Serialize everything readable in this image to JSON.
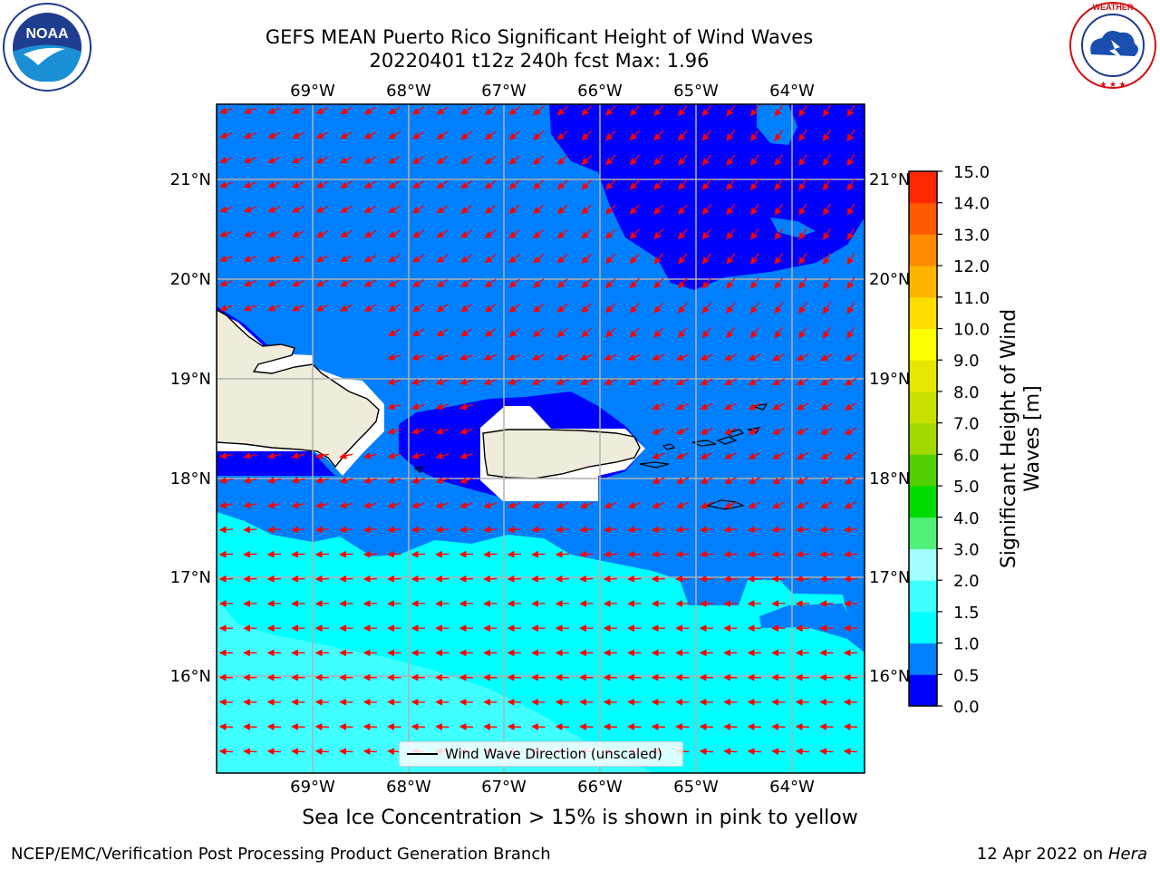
{
  "header": {
    "title_line1": "GEFS MEAN Puerto Rico Significant Height of Wind Waves",
    "title_line2": "20220401 t12z 240h fcst   Max: 1.96"
  },
  "logos": {
    "left": "noaa-logo",
    "right": "nws-logo",
    "nws_text": "NATIONAL WEATHER SERVICE"
  },
  "map": {
    "lon_labels": [
      "69°W",
      "68°W",
      "67°W",
      "66°W",
      "65°W",
      "64°W"
    ],
    "lat_labels": [
      "21°N",
      "20°N",
      "19°N",
      "18°N",
      "17°N",
      "16°N"
    ],
    "legend_label": "Wind Wave Direction (unscaled)",
    "arrow_color": "#ff0000",
    "land_color": "#efecdc"
  },
  "colorbar": {
    "title": "Significant Height of Wind Waves [m]",
    "title_line1": "Significant Height of Wind",
    "title_line2": "Waves [m]",
    "ticks": [
      "0.0",
      "0.5",
      "1.0",
      "1.5",
      "2.0",
      "3.0",
      "4.0",
      "5.0",
      "6.0",
      "7.0",
      "8.0",
      "9.0",
      "10.0",
      "11.0",
      "12.0",
      "13.0",
      "14.0",
      "15.0"
    ],
    "colors": [
      "#0000ff",
      "#0080ff",
      "#00ffff",
      "#40ffff",
      "#a0ffff",
      "#50f078",
      "#00dc00",
      "#50d000",
      "#a0d800",
      "#c8e000",
      "#e6e600",
      "#ffff00",
      "#ffdc00",
      "#ffb400",
      "#ff8c00",
      "#ff5a00",
      "#ff2800"
    ]
  },
  "footer": {
    "sea_ice_note": "Sea Ice Concentration > 15% is shown in pink to yellow",
    "credit_left": "NCEP/EMC/Verification Post Processing Product Generation Branch",
    "credit_date": "12 Apr 2022 on",
    "credit_host": "Hera"
  }
}
